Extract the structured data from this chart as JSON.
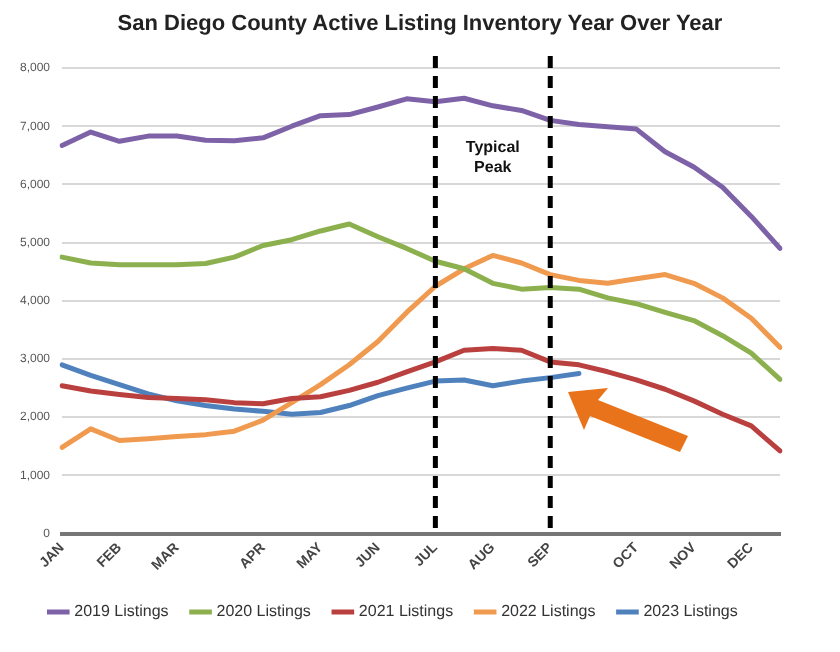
{
  "chart_data": {
    "type": "line",
    "title": "San Diego County Active Listing Inventory Year Over Year",
    "categories": [
      "JAN",
      null,
      "FEB",
      null,
      "MAR",
      null,
      null,
      "APR",
      null,
      "MAY",
      null,
      "JUN",
      null,
      "JUL",
      null,
      "AUG",
      null,
      "SEP",
      null,
      null,
      "OCT",
      null,
      "NOV",
      null,
      "DEC",
      null
    ],
    "series": [
      {
        "name": "2019 Listings",
        "color": "#7e62a8",
        "values": [
          6670,
          6900,
          6740,
          6830,
          6830,
          6760,
          6750,
          6800,
          7000,
          7180,
          7200,
          7330,
          7470,
          7420,
          7480,
          7350,
          7270,
          7100,
          7030,
          6990,
          6950,
          6560,
          6300,
          5950,
          5450,
          4900
        ]
      },
      {
        "name": "2020 Listings",
        "color": "#8db04f",
        "values": [
          4750,
          4650,
          4620,
          4620,
          4620,
          4640,
          4750,
          4950,
          5050,
          5200,
          5320,
          5100,
          4900,
          4680,
          4550,
          4300,
          4200,
          4230,
          4200,
          4050,
          3950,
          3800,
          3660,
          3400,
          3100,
          2650
        ]
      },
      {
        "name": "2021 Listings",
        "color": "#b9403e",
        "values": [
          2540,
          2450,
          2390,
          2340,
          2320,
          2300,
          2250,
          2230,
          2320,
          2350,
          2460,
          2600,
          2780,
          2950,
          3150,
          3180,
          3150,
          2950,
          2900,
          2780,
          2640,
          2480,
          2280,
          2050,
          1850,
          1420
        ]
      },
      {
        "name": "2022 Listings",
        "color": "#f09a4f",
        "values": [
          1480,
          1800,
          1600,
          1630,
          1670,
          1700,
          1760,
          1950,
          2250,
          2560,
          2900,
          3300,
          3800,
          4250,
          4550,
          4780,
          4650,
          4450,
          4350,
          4300,
          4380,
          4450,
          4300,
          4050,
          3700,
          3200
        ]
      },
      {
        "name": "2023 Listings",
        "color": "#4f81bd",
        "values": [
          2900,
          2720,
          2560,
          2400,
          2280,
          2200,
          2140,
          2100,
          2050,
          2080,
          2200,
          2370,
          2500,
          2620,
          2640,
          2540,
          2620,
          2680,
          2750,
          null,
          null,
          null,
          null,
          null,
          null,
          null
        ]
      }
    ],
    "ylim": [
      0,
      8000
    ],
    "yticks": [
      0,
      {
        "value": 1000,
        "label": "1,000"
      },
      {
        "value": 2000,
        "label": "2,000"
      },
      {
        "value": 3000,
        "label": "3,000"
      },
      {
        "value": 4000,
        "label": "4,000"
      },
      {
        "value": 5000,
        "label": "5,000"
      },
      {
        "value": 6000,
        "label": "6,000"
      },
      {
        "value": 7000,
        "label": "7,000"
      },
      {
        "value": 8000,
        "label": "8,000"
      }
    ],
    "grid": "y",
    "legend": "bottom",
    "marker": "none",
    "line_style": "solid",
    "ref_lines": [
      {
        "axis": "x",
        "value": "JUL",
        "color": "#000000",
        "line_style": "dashed"
      },
      {
        "axis": "x",
        "value": "SEP",
        "color": "#000000",
        "line_style": "dashed"
      }
    ],
    "annotations": [
      "Typical Peak"
    ]
  }
}
